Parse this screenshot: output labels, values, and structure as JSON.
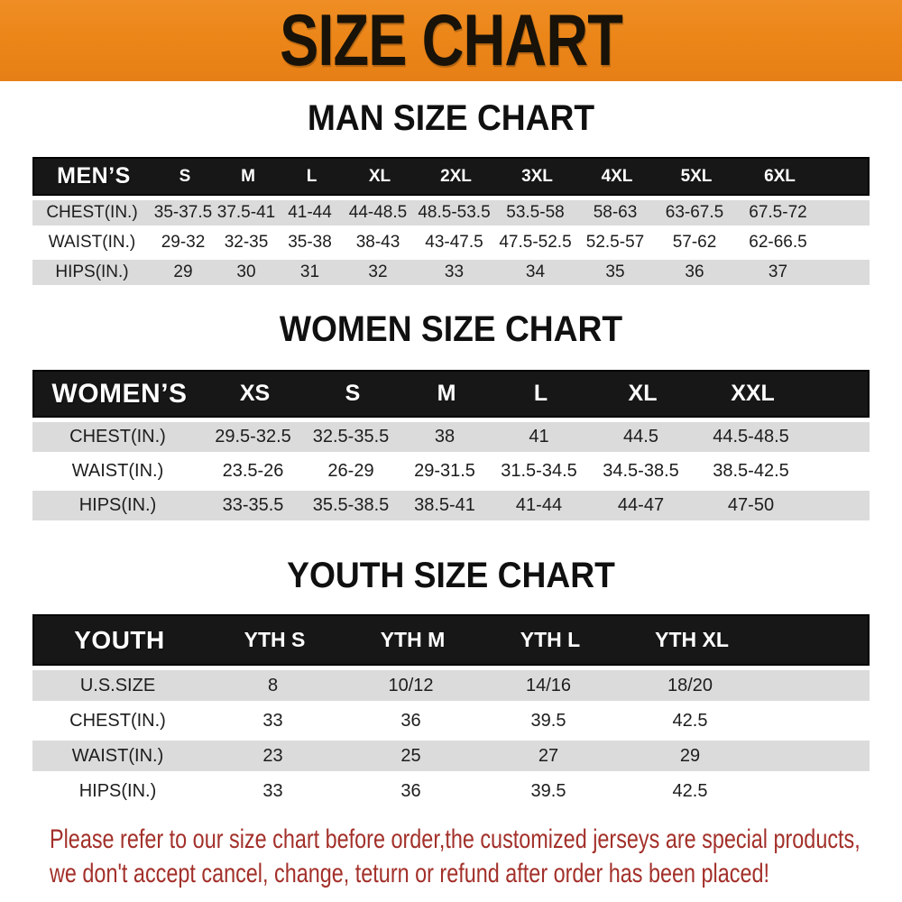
{
  "banner": {
    "title": "SIZE CHART"
  },
  "colors": {
    "banner_bg": "#ec8619",
    "header_bg": "#171717",
    "row_gray": "#dbdbdb",
    "disclaimer_text": "#a3302a"
  },
  "sections": [
    {
      "heading": "MAN SIZE CHART",
      "table": {
        "header": [
          "MEN’S",
          "S",
          "M",
          "L",
          "XL",
          "2XL",
          "3XL",
          "4XL",
          "5XL",
          "6XL"
        ],
        "rows": [
          {
            "label": "CHEST(IN.)",
            "values": [
              "35-37.5",
              "37.5-41",
              "41-44",
              "44-48.5",
              "48.5-53.5",
              "53.5-58",
              "58-63",
              "63-67.5",
              "67.5-72"
            ]
          },
          {
            "label": "WAIST(IN.)",
            "values": [
              "29-32",
              "32-35",
              "35-38",
              "38-43",
              "43-47.5",
              "47.5-52.5",
              "52.5-57",
              "57-62",
              "62-66.5"
            ]
          },
          {
            "label": "HIPS(IN.)",
            "values": [
              "29",
              "30",
              "31",
              "32",
              "33",
              "34",
              "35",
              "36",
              "37"
            ]
          }
        ]
      }
    },
    {
      "heading": "WOMEN SIZE CHART",
      "table": {
        "header": [
          "WOMEN’S",
          "XS",
          "S",
          "M",
          "L",
          "XL",
          "XXL"
        ],
        "rows": [
          {
            "label": "CHEST(IN.)",
            "values": [
              "29.5-32.5",
              "32.5-35.5",
              "38",
              "41",
              "44.5",
              "44.5-48.5"
            ]
          },
          {
            "label": "WAIST(IN.)",
            "values": [
              "23.5-26",
              "26-29",
              "29-31.5",
              "31.5-34.5",
              "34.5-38.5",
              "38.5-42.5"
            ]
          },
          {
            "label": "HIPS(IN.)",
            "values": [
              "33-35.5",
              "35.5-38.5",
              "38.5-41",
              "41-44",
              "44-47",
              "47-50"
            ]
          }
        ]
      }
    },
    {
      "heading": "YOUTH SIZE CHART",
      "table": {
        "header": [
          "YOUTH",
          "YTH S",
          "YTH M",
          "YTH L",
          "YTH XL"
        ],
        "rows": [
          {
            "label": "U.S.SIZE",
            "values": [
              "8",
              "10/12",
              "14/16",
              "18/20"
            ]
          },
          {
            "label": "CHEST(IN.)",
            "values": [
              "33",
              "36",
              "39.5",
              "42.5"
            ]
          },
          {
            "label": "WAIST(IN.)",
            "values": [
              "23",
              "25",
              "27",
              "29"
            ]
          },
          {
            "label": "HIPS(IN.)",
            "values": [
              "33",
              "36",
              "39.5",
              "42.5"
            ]
          }
        ]
      }
    }
  ],
  "disclaimer": {
    "lines": [
      "Please refer to our size chart before order,the customized jerseys are special products,",
      "we don't accept cancel, change, teturn or refund after order has been placed!"
    ]
  }
}
